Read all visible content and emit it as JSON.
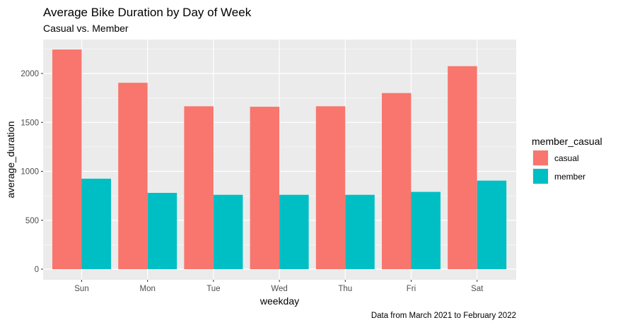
{
  "chart_data": {
    "type": "bar",
    "title": "Average Bike Duration by Day of Week",
    "subtitle": "Casual vs. Member",
    "xlabel": "weekday",
    "ylabel": "average_duration",
    "caption": "Data from March 2021 to February 2022",
    "categories": [
      "Sun",
      "Mon",
      "Tue",
      "Wed",
      "Thu",
      "Fri",
      "Sat"
    ],
    "series": [
      {
        "name": "casual",
        "color": "#F8766D",
        "values": [
          2245,
          1905,
          1665,
          1660,
          1665,
          1800,
          2075
        ]
      },
      {
        "name": "member",
        "color": "#00BFC4",
        "values": [
          925,
          780,
          760,
          760,
          760,
          790,
          905
        ]
      }
    ],
    "ylim": [
      0,
      2300
    ],
    "yticks": [
      0,
      500,
      1000,
      1500,
      2000
    ],
    "legend": {
      "title": "member_casual",
      "placement": "right"
    },
    "grid": true
  }
}
